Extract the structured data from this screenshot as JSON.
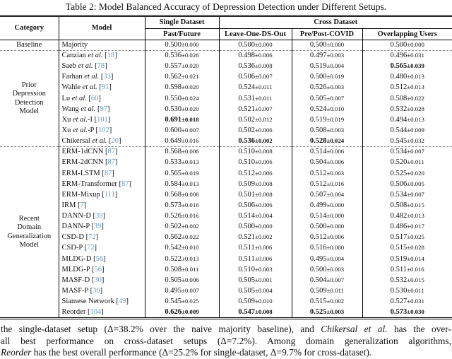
{
  "colors": {
    "citation": "#6596c6",
    "dashed_divider": "#8a8a8a"
  },
  "table": {
    "title": "Table 2: Model Balanced Accuracy of Depression Detection under Different Setups.",
    "header": {
      "category": "Category",
      "model": "Model",
      "single_dataset": "Single Dataset",
      "cross_dataset": "Cross Dataset",
      "sub": [
        "Past/Future",
        "Leave-One-DS-Out",
        "Pre/Post-COVID",
        "Overlapping Users"
      ]
    },
    "sections": [
      {
        "category_lines": [
          "Baseline"
        ],
        "rows": [
          {
            "name": "Majority",
            "etal": "",
            "suffix": "",
            "cite": "",
            "values": [
              "0.500±0.000",
              "0.500±0.000",
              "0.500±0.000",
              "0.500±0.000"
            ],
            "bold": []
          }
        ]
      },
      {
        "category_lines": [
          "Prior",
          "Depression",
          "Detection",
          "Model"
        ],
        "rows": [
          {
            "name": "Canzian ",
            "etal": "et al.",
            "suffix": "",
            "cite": "18",
            "values": [
              "0.536±0.026",
              "0.498±0.006",
              "0.497±0.003",
              "0.496±0.031"
            ],
            "bold": []
          },
          {
            "name": "Saeb ",
            "etal": "et al.",
            "suffix": "",
            "cite": "78",
            "values": [
              "0.557±0.020",
              "0.536±0.008",
              "0.519±0.004",
              "0.565±0.039"
            ],
            "bold": [
              3
            ]
          },
          {
            "name": "Farhan ",
            "etal": "et al.",
            "suffix": "",
            "cite": "33",
            "values": [
              "0.562±0.021",
              "0.506±0.007",
              "0.500±0.019",
              "0.480±0.013"
            ],
            "bold": []
          },
          {
            "name": "Wahle ",
            "etal": "et al.",
            "suffix": "",
            "cite": "91",
            "values": [
              "0.598±0.020",
              "0.524±0.011",
              "0.526±0.003",
              "0.512±0.013"
            ],
            "bold": []
          },
          {
            "name": "Lu ",
            "etal": "et al.",
            "suffix": "",
            "cite": "60",
            "values": [
              "0.550±0.024",
              "0.531±0.011",
              "0.505±0.007",
              "0.508±0.022"
            ],
            "bold": []
          },
          {
            "name": "Wang ",
            "etal": "et al.",
            "suffix": "",
            "cite": "97",
            "values": [
              "0.530±0.020",
              "0.521±0.007",
              "0.524±0.010",
              "0.532±0.028"
            ],
            "bold": []
          },
          {
            "name": "Xu ",
            "etal": "et al.",
            "suffix": "-I",
            "cite": "101",
            "values": [
              "0.691±0.018",
              "0.502±0.012",
              "0.519±0.019",
              "0.494±0.013"
            ],
            "bold": [
              0
            ]
          },
          {
            "name": "Xu ",
            "etal": "et al.",
            "suffix": "-P",
            "cite": "102",
            "values": [
              "0.600±0.007",
              "0.502±0.006",
              "0.508±0.003",
              "0.544±0.009"
            ],
            "bold": []
          },
          {
            "name": "Chikersal ",
            "etal": "et al.",
            "suffix": "",
            "cite": "20",
            "values": [
              "0.649±0.016",
              "0.536±0.002",
              "0.528±0.024",
              "0.545±0.032"
            ],
            "bold": [
              1,
              2
            ]
          }
        ]
      },
      {
        "category_lines": [
          "Recent",
          "Domain",
          "Generalization",
          "Model"
        ],
        "rows": [
          {
            "name": "ERM-1dCNN",
            "etal": "",
            "suffix": "",
            "cite": "87",
            "values": [
              "0.568±0.006",
              "0.510±0.008",
              "0.514±0.006",
              "0.534±0.007"
            ],
            "bold": []
          },
          {
            "name": "ERM-2dCNN",
            "etal": "",
            "suffix": "",
            "cite": "87",
            "values": [
              "0.533±0.013",
              "0.510±0.006",
              "0.504±0.006",
              "0.520±0.011"
            ],
            "bold": []
          },
          {
            "name": "ERM-LSTM",
            "etal": "",
            "suffix": "",
            "cite": "87",
            "values": [
              "0.565±0.019",
              "0.512±0.006",
              "0.512±0.003",
              "0.525±0.020"
            ],
            "bold": []
          },
          {
            "name": "ERM-Transformer",
            "etal": "",
            "suffix": "",
            "cite": "87",
            "values": [
              "0.584±0.013",
              "0.509±0.008",
              "0.512±0.016",
              "0.506±0.005"
            ],
            "bold": []
          },
          {
            "name": "ERM-Mixup",
            "etal": "",
            "suffix": "",
            "cite": "111",
            "values": [
              "0.568±0.006",
              "0.501±0.008",
              "0.507±0.004",
              "0.534±0.007"
            ],
            "bold": []
          },
          {
            "name": "IRM",
            "etal": "",
            "suffix": "",
            "cite": "7",
            "values": [
              "0.573±0.016",
              "0.506±0.006",
              "0.499±0.000",
              "0.508±0.015"
            ],
            "bold": []
          },
          {
            "name": "DANN-D",
            "etal": "",
            "suffix": "",
            "cite": "39",
            "values": [
              "0.526±0.016",
              "0.514±0.004",
              "0.514±0.000",
              "0.482±0.013"
            ],
            "bold": []
          },
          {
            "name": "DANN-P",
            "etal": "",
            "suffix": "",
            "cite": "39",
            "values": [
              "0.502±0.002",
              "0.500±0.000",
              "0.500±0.000",
              "0.486±0.017"
            ],
            "bold": []
          },
          {
            "name": "CSD-D",
            "etal": "",
            "suffix": "",
            "cite": "72",
            "values": [
              "0.562±0.022",
              "0.521±0.002",
              "0.512±0.006",
              "0.517±0.025"
            ],
            "bold": []
          },
          {
            "name": "CSD-P",
            "etal": "",
            "suffix": "",
            "cite": "72",
            "values": [
              "0.542±0.010",
              "0.511±0.006",
              "0.516±0.000",
              "0.515±0.028"
            ],
            "bold": []
          },
          {
            "name": "MLDG-D",
            "etal": "",
            "suffix": "",
            "cite": "56",
            "values": [
              "0.522±0.013",
              "0.511±0.006",
              "0.495±0.004",
              "0.519±0.014"
            ],
            "bold": []
          },
          {
            "name": "MLDG-P",
            "etal": "",
            "suffix": "",
            "cite": "56",
            "values": [
              "0.508±0.011",
              "0.510±0.003",
              "0.500±0.003",
              "0.511±0.016"
            ],
            "bold": []
          },
          {
            "name": "MASF-D",
            "etal": "",
            "suffix": "",
            "cite": "30",
            "values": [
              "0.505±0.006",
              "0.505±0.001",
              "0.504±0.007",
              "0.532±0.015"
            ],
            "bold": []
          },
          {
            "name": "MASF-P",
            "etal": "",
            "suffix": "",
            "cite": "30",
            "values": [
              "0.495±0.007",
              "0.505±0.004",
              "0.509±0.011",
              "0.530±0.011"
            ],
            "bold": []
          },
          {
            "name": "Siamese Network",
            "etal": "",
            "suffix": "",
            "cite": "49",
            "values": [
              "0.545±0.025",
              "0.509±0.010",
              "0.515±0.002",
              "0.527±0.031"
            ],
            "bold": []
          },
          {
            "name": "Reorder",
            "etal": "",
            "suffix": "",
            "cite": "104",
            "values": [
              "0.626±0.009",
              "0.547±0.008",
              "0.525±0.003",
              "0.573±0.030"
            ],
            "bold": [
              0,
              1,
              2,
              3
            ]
          }
        ]
      }
    ]
  },
  "chart_data": {
    "type": "table",
    "title": "Table 2: Model Balanced Accuracy of Depression Detection under Different Setups.",
    "columns": [
      "Category",
      "Model",
      "Past/Future (Single Dataset)",
      "Leave-One-DS-Out (Cross Dataset)",
      "Pre/Post-COVID (Cross Dataset)",
      "Overlapping Users (Cross Dataset)"
    ],
    "rows": [
      [
        "Baseline",
        "Majority",
        "0.500±0.000",
        "0.500±0.000",
        "0.500±0.000",
        "0.500±0.000"
      ],
      [
        "Prior Depression Detection Model",
        "Canzian et al. [18]",
        "0.536±0.026",
        "0.498±0.006",
        "0.497±0.003",
        "0.496±0.031"
      ],
      [
        "Prior Depression Detection Model",
        "Saeb et al. [78]",
        "0.557±0.020",
        "0.536±0.008",
        "0.519±0.004",
        "0.565±0.039"
      ],
      [
        "Prior Depression Detection Model",
        "Farhan et al. [33]",
        "0.562±0.021",
        "0.506±0.007",
        "0.500±0.019",
        "0.480±0.013"
      ],
      [
        "Prior Depression Detection Model",
        "Wahle et al. [91]",
        "0.598±0.020",
        "0.524±0.011",
        "0.526±0.003",
        "0.512±0.013"
      ],
      [
        "Prior Depression Detection Model",
        "Lu et al. [60]",
        "0.550±0.024",
        "0.531±0.011",
        "0.505±0.007",
        "0.508±0.022"
      ],
      [
        "Prior Depression Detection Model",
        "Wang et al. [97]",
        "0.530±0.020",
        "0.521±0.007",
        "0.524±0.010",
        "0.532±0.028"
      ],
      [
        "Prior Depression Detection Model",
        "Xu et al.-I [101]",
        "0.691±0.018",
        "0.502±0.012",
        "0.519±0.019",
        "0.494±0.013"
      ],
      [
        "Prior Depression Detection Model",
        "Xu et al.-P [102]",
        "0.600±0.007",
        "0.502±0.006",
        "0.508±0.003",
        "0.544±0.009"
      ],
      [
        "Prior Depression Detection Model",
        "Chikersal et al. [20]",
        "0.649±0.016",
        "0.536±0.002",
        "0.528±0.024",
        "0.545±0.032"
      ],
      [
        "Recent Domain Generalization Model",
        "ERM-1dCNN [87]",
        "0.568±0.006",
        "0.510±0.008",
        "0.514±0.006",
        "0.534±0.007"
      ],
      [
        "Recent Domain Generalization Model",
        "ERM-2dCNN [87]",
        "0.533±0.013",
        "0.510±0.006",
        "0.504±0.006",
        "0.520±0.011"
      ],
      [
        "Recent Domain Generalization Model",
        "ERM-LSTM [87]",
        "0.565±0.019",
        "0.512±0.006",
        "0.512±0.003",
        "0.525±0.020"
      ],
      [
        "Recent Domain Generalization Model",
        "ERM-Transformer [87]",
        "0.584±0.013",
        "0.509±0.008",
        "0.512±0.016",
        "0.506±0.005"
      ],
      [
        "Recent Domain Generalization Model",
        "ERM-Mixup [111]",
        "0.568±0.006",
        "0.501±0.008",
        "0.507±0.004",
        "0.534±0.007"
      ],
      [
        "Recent Domain Generalization Model",
        "IRM [7]",
        "0.573±0.016",
        "0.506±0.006",
        "0.499±0.000",
        "0.508±0.015"
      ],
      [
        "Recent Domain Generalization Model",
        "DANN-D [39]",
        "0.526±0.016",
        "0.514±0.004",
        "0.514±0.000",
        "0.482±0.013"
      ],
      [
        "Recent Domain Generalization Model",
        "DANN-P [39]",
        "0.502±0.002",
        "0.500±0.000",
        "0.500±0.000",
        "0.486±0.017"
      ],
      [
        "Recent Domain Generalization Model",
        "CSD-D [72]",
        "0.562±0.022",
        "0.521±0.002",
        "0.512±0.006",
        "0.517±0.025"
      ],
      [
        "Recent Domain Generalization Model",
        "CSD-P [72]",
        "0.542±0.010",
        "0.511±0.006",
        "0.516±0.000",
        "0.515±0.028"
      ],
      [
        "Recent Domain Generalization Model",
        "MLDG-D [56]",
        "0.522±0.013",
        "0.511±0.006",
        "0.495±0.004",
        "0.519±0.014"
      ],
      [
        "Recent Domain Generalization Model",
        "MLDG-P [56]",
        "0.508±0.011",
        "0.510±0.003",
        "0.500±0.003",
        "0.511±0.016"
      ],
      [
        "Recent Domain Generalization Model",
        "MASF-D [30]",
        "0.505±0.006",
        "0.505±0.001",
        "0.504±0.007",
        "0.532±0.015"
      ],
      [
        "Recent Domain Generalization Model",
        "MASF-P [30]",
        "0.495±0.007",
        "0.505±0.004",
        "0.509±0.011",
        "0.530±0.011"
      ],
      [
        "Recent Domain Generalization Model",
        "Siamese Network [49]",
        "0.545±0.025",
        "0.509±0.010",
        "0.515±0.002",
        "0.527±0.031"
      ],
      [
        "Recent Domain Generalization Model",
        "Reorder [104]",
        "0.626±0.009",
        "0.547±0.008",
        "0.525±0.003",
        "0.573±0.030"
      ]
    ]
  },
  "paragraph": {
    "lines": [
      {
        "justify": true,
        "segments": [
          {
            "text": "the single-dataset setup (Δ=38.2% over the naive majority baseline), and ",
            "italic": false
          },
          {
            "text": "Chikersal et al.",
            "italic": true
          },
          {
            "text": " has the over-",
            "italic": false
          }
        ]
      },
      {
        "justify": true,
        "segments": [
          {
            "text": "all best performance on cross-dataset setups (Δ=7.2%). Among domain generalization algorithms,",
            "italic": false
          }
        ]
      },
      {
        "justify": false,
        "segments": [
          {
            "text": "Reorder",
            "italic": true
          },
          {
            "text": " has the best overall performance (Δ=25.2% for single-dataset, Δ=9.7% for cross-dataset).",
            "italic": false
          }
        ]
      }
    ]
  }
}
